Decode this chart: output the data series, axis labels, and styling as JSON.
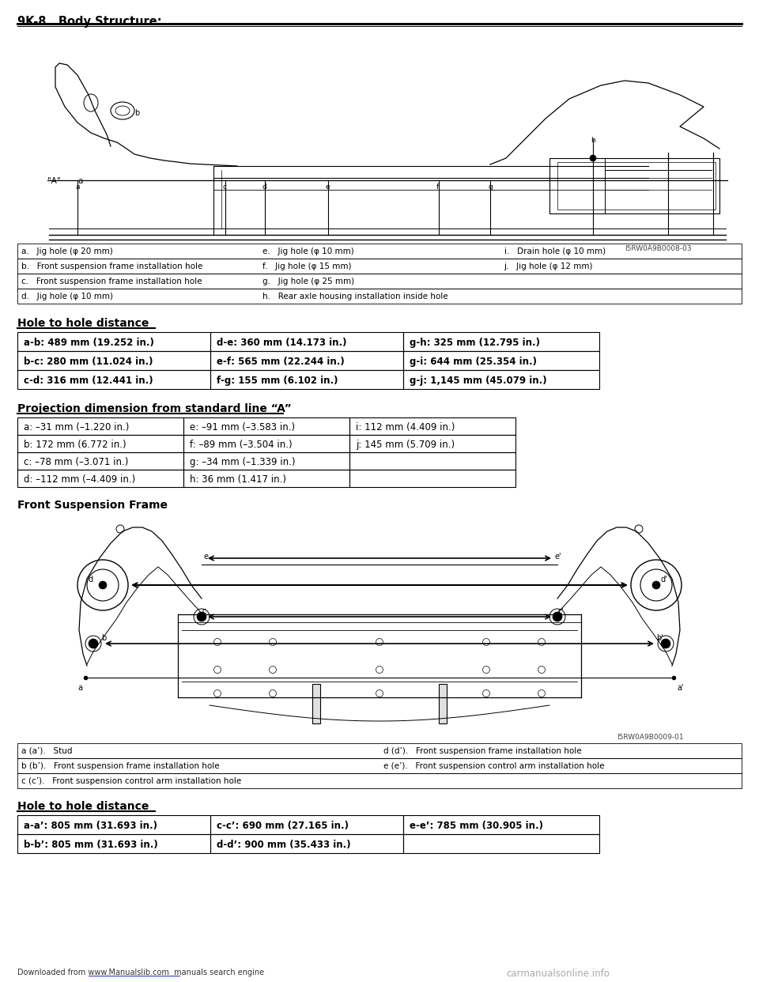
{
  "page_header": "9K-8   Body Structure:",
  "bg_color": "#ffffff",
  "text_color": "#000000",
  "legend_table1": {
    "rows": [
      [
        "a.   Jig hole (φ 20 mm)",
        "e.   Jig hole (φ 10 mm)",
        "i.   Drain hole (φ 10 mm)"
      ],
      [
        "b.   Front suspension frame installation hole",
        "f.   Jig hole (φ 15 mm)",
        "j.   Jig hole (φ 12 mm)"
      ],
      [
        "c.   Front suspension frame installation hole",
        "g.   Jig hole (φ 25 mm)",
        ""
      ],
      [
        "d.   Jig hole (φ 10 mm)",
        "h.   Rear axle housing installation inside hole",
        ""
      ]
    ]
  },
  "section1_title": "Hole to hole distance",
  "table1_rows": [
    [
      "a-b: 489 mm (19.252 in.)",
      "d-e: 360 mm (14.173 in.)",
      "g-h: 325 mm (12.795 in.)"
    ],
    [
      "b-c: 280 mm (11.024 in.)",
      "e-f: 565 mm (22.244 in.)",
      "g-i: 644 mm (25.354 in.)"
    ],
    [
      "c-d: 316 mm (12.441 in.)",
      "f-g: 155 mm (6.102 in.)",
      "g-j: 1,145 mm (45.079 in.)"
    ]
  ],
  "section2_title": "Projection dimension from standard line “A”",
  "table2_rows": [
    [
      "a: –31 mm (–1.220 in.)",
      "e: –91 mm (–3.583 in.)",
      "i: 112 mm (4.409 in.)"
    ],
    [
      "b: 172 mm (6.772 in.)",
      "f: –89 mm (–3.504 in.)",
      "j: 145 mm (5.709 in.)"
    ],
    [
      "c: –78 mm (–3.071 in.)",
      "g: –34 mm (–1.339 in.)",
      ""
    ],
    [
      "d: –112 mm (–4.409 in.)",
      "h: 36 mm (1.417 in.)",
      ""
    ]
  ],
  "section3_title": "Front Suspension Frame",
  "legend_table2": {
    "rows": [
      [
        "a (a’).   Stud",
        "d (d’).   Front suspension frame installation hole"
      ],
      [
        "b (b’).   Front suspension frame installation hole",
        "e (e’).   Front suspension control arm installation hole"
      ],
      [
        "c (c’).   Front suspension control arm installation hole",
        ""
      ]
    ]
  },
  "section4_title": "Hole to hole distance",
  "table3_rows": [
    [
      "a-a’: 805 mm (31.693 in.)",
      "c-c’: 690 mm (27.165 in.)",
      "e-e’: 785 mm (30.905 in.)"
    ],
    [
      "b-b’: 805 mm (31.693 in.)",
      "d-d’: 900 mm (35.433 in.)",
      ""
    ]
  ],
  "footer_left": "Downloaded from www.Manualslib.com  manuals search engine",
  "footer_right": "carmanualsonline.info",
  "image_ref1": "I5RW0A9B0008-03",
  "image_ref2": "I5RW0A9B0009-01"
}
